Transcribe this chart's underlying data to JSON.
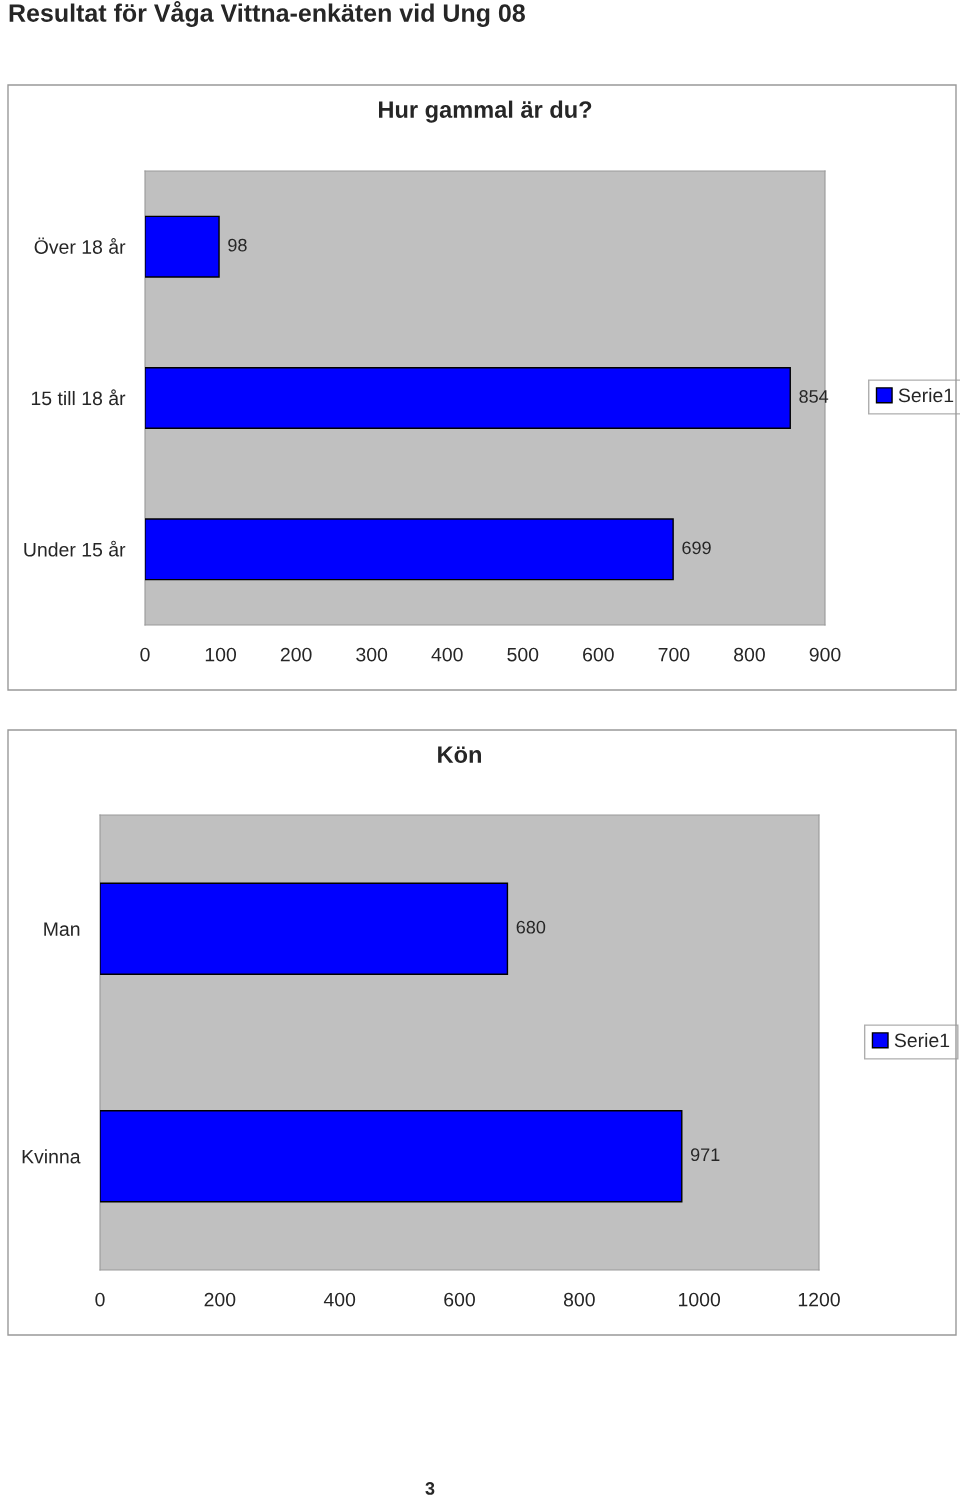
{
  "chart_data": [
    {
      "type": "bar",
      "orientation": "horizontal",
      "title": "Hur gammal är du?",
      "annotations": [
        "Resultat för Våga Vittna-enkäten vid Ung 08"
      ],
      "categories": [
        "Över 18 år",
        "15 till 18 år",
        "Under 15 år"
      ],
      "series": [
        {
          "name": "Serie1",
          "color": "#0000ff",
          "values": [
            98,
            854,
            699
          ]
        }
      ],
      "xlim": [
        0,
        900
      ],
      "xticks": [
        0,
        100,
        200,
        300,
        400,
        500,
        600,
        700,
        800,
        900
      ],
      "data_labels": true,
      "legend": "right",
      "grid": false
    },
    {
      "type": "bar",
      "orientation": "horizontal",
      "title": "Kön",
      "annotations": [
        "3"
      ],
      "categories": [
        "Man",
        "Kvinna"
      ],
      "series": [
        {
          "name": "Serie1",
          "color": "#0000ff",
          "values": [
            680,
            971
          ]
        }
      ],
      "xlim": [
        0,
        1200
      ],
      "xticks": [
        0,
        200,
        400,
        600,
        800,
        1000,
        1200
      ],
      "data_labels": true,
      "legend": "right",
      "grid": false
    }
  ]
}
